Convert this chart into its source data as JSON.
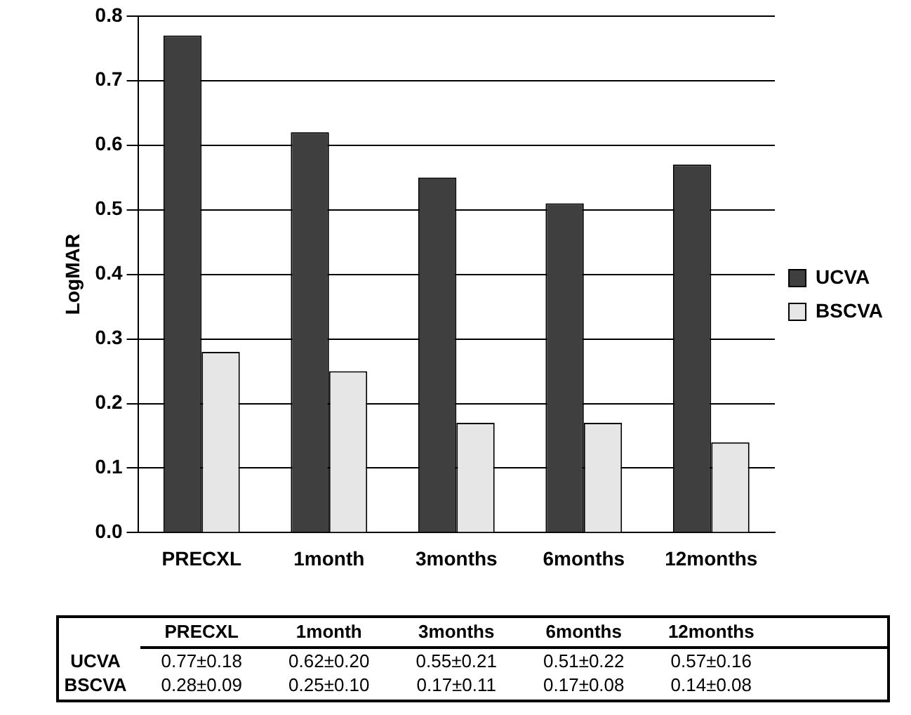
{
  "chart_data": {
    "type": "bar",
    "ylabel": "LogMAR",
    "categories": [
      "PRECXL",
      "1month",
      "3months",
      "6months",
      "12months"
    ],
    "series": [
      {
        "name": "UCVA",
        "color": "#3f3f3f",
        "values": [
          0.77,
          0.62,
          0.55,
          0.51,
          0.57
        ],
        "value_labels": [
          "0.77±0.18",
          "0.62±0.20",
          "0.55±0.21",
          "0.51±0.22",
          "0.57±0.16"
        ]
      },
      {
        "name": "BSCVA",
        "color": "#e6e6e6",
        "values": [
          0.28,
          0.25,
          0.17,
          0.17,
          0.14
        ],
        "value_labels": [
          "0.28±0.09",
          "0.25±0.10",
          "0.17±0.11",
          "0.17±0.08",
          "0.14±0.08"
        ]
      }
    ],
    "ylim": [
      0,
      0.8
    ],
    "yticks": [
      {
        "value": 0,
        "label": "0.0"
      },
      {
        "value": 0.1,
        "label": "0.1"
      },
      {
        "value": 0.2,
        "label": "0.2"
      },
      {
        "value": 0.3,
        "label": "0.3"
      },
      {
        "value": 0.4,
        "label": "0.4"
      },
      {
        "value": 0.5,
        "label": "0.5"
      },
      {
        "value": 0.6,
        "label": "0.6"
      },
      {
        "value": 0.7,
        "label": "0.7"
      },
      {
        "value": 0.8,
        "label": "0.8"
      }
    ],
    "grid": "y",
    "legend": "right"
  }
}
